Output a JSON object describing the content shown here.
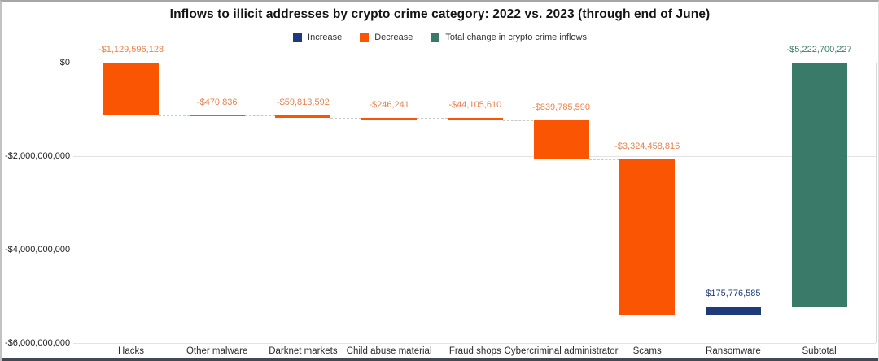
{
  "chart_data": {
    "type": "bar",
    "variant": "waterfall",
    "title": "Inflows to illicit addresses by crypto crime category: 2022 vs. 2023 (through end of June)",
    "categories": [
      "Hacks",
      "Other malware",
      "Darknet markets",
      "Child abuse material",
      "Fraud shops",
      "Cybercriminal administrator",
      "Scams",
      "Ransomware",
      "Subtotal"
    ],
    "values": [
      -1129596128,
      -470836,
      -59813592,
      -246241,
      -44105610,
      -839785590,
      -3324458816,
      175776585,
      -5222700227
    ],
    "value_labels": [
      "-$1,129,596,128",
      "-$470,836",
      "-$59,813,592",
      "-$246,241",
      "-$44,105,610",
      "-$839,785,590",
      "-$3,324,458,816",
      "$175,776,585",
      "-$5,222,700,227"
    ],
    "bar_roles": [
      "decrease",
      "decrease",
      "decrease",
      "decrease",
      "decrease",
      "decrease",
      "decrease",
      "increase",
      "total"
    ],
    "legend": {
      "position": "top",
      "items": [
        {
          "label": "Increase",
          "role": "increase"
        },
        {
          "label": "Decrease",
          "role": "decrease"
        },
        {
          "label": "Total change in crypto crime inflows",
          "role": "total"
        }
      ]
    },
    "y_axis": {
      "range": [
        -6000000000,
        0
      ],
      "grid": true,
      "ticks": [
        {
          "label": "$0",
          "value": 0
        },
        {
          "label": "-$2,000,000,000",
          "value": -2000000000
        },
        {
          "label": "-$4,000,000,000",
          "value": -4000000000
        },
        {
          "label": "-$6,000,000,000",
          "value": -6000000000
        }
      ]
    },
    "colors": {
      "increase": "#1f3a78",
      "decrease": "#fa5502",
      "total": "#3a7a68",
      "increase_label": "#223d78",
      "decrease_label": "#e8824e",
      "total_label": "#3a7a68"
    }
  }
}
